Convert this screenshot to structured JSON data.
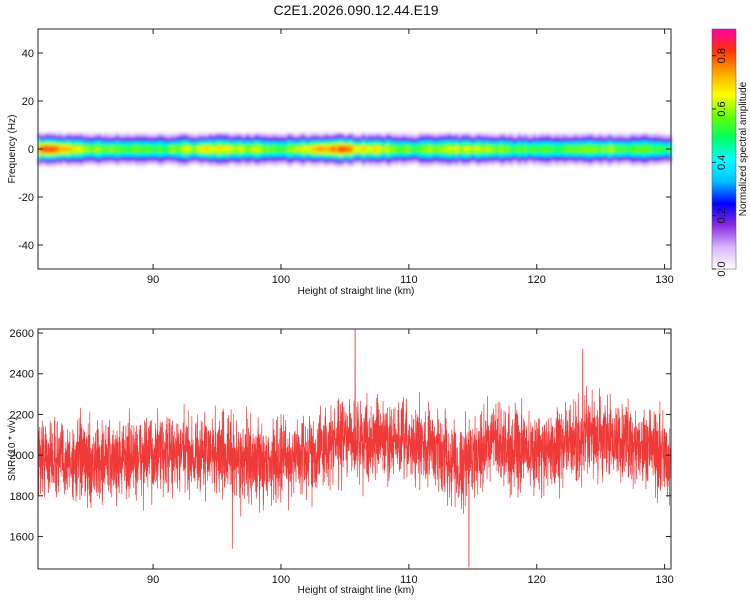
{
  "title": "C2E1.2026.090.12.44.E19",
  "chart_data": [
    {
      "type": "heatmap",
      "xlabel": "Height of straight line (km)",
      "ylabel": "Frequency (Hz)",
      "xlim": [
        81.0,
        130.5
      ],
      "ylim": [
        -50,
        50
      ],
      "x_ticks": [
        90,
        100,
        110,
        120,
        130
      ],
      "y_ticks": [
        40,
        20,
        0,
        -20,
        -40
      ],
      "colorbar": {
        "label": "Normalized spectral amplitude",
        "range": [
          0.0,
          0.9
        ],
        "ticks": [
          "0.0",
          "0.2",
          "0.4",
          "0.6",
          "0.8"
        ],
        "palette": [
          "#ffffff",
          "#d8b6ff",
          "#8a2be2",
          "#0000ff",
          "#00bfff",
          "#00ffff",
          "#00ff66",
          "#66ff00",
          "#ffff00",
          "#ffa500",
          "#ff3300",
          "#ff00aa"
        ]
      },
      "ridge_center_hz": 0,
      "ridge_peak_amplitude_by_height": [
        {
          "x": 81.5,
          "amp": 0.85
        },
        {
          "x": 84.5,
          "amp": 0.62
        },
        {
          "x": 90.0,
          "amp": 0.55
        },
        {
          "x": 95.0,
          "amp": 0.72
        },
        {
          "x": 100.0,
          "amp": 0.55
        },
        {
          "x": 104.0,
          "amp": 0.82
        },
        {
          "x": 110.0,
          "amp": 0.58
        },
        {
          "x": 114.0,
          "amp": 0.65
        },
        {
          "x": 120.0,
          "amp": 0.55
        },
        {
          "x": 126.0,
          "amp": 0.6
        },
        {
          "x": 130.0,
          "amp": 0.55
        }
      ]
    },
    {
      "type": "line",
      "xlabel": "Height of straight line (km)",
      "ylabel": "SNR (10 * v/v)",
      "xlim": [
        81.0,
        130.5
      ],
      "ylim": [
        1440,
        2620
      ],
      "x_ticks": [
        90,
        100,
        110,
        120,
        130
      ],
      "y_ticks": [
        2600,
        2400,
        2200,
        2000,
        1800,
        1600
      ],
      "series_color": "#f03a3a",
      "baseline_trend": [
        {
          "x": 81,
          "y": 1990
        },
        {
          "x": 85,
          "y": 1960
        },
        {
          "x": 90,
          "y": 2000
        },
        {
          "x": 95,
          "y": 2010
        },
        {
          "x": 98,
          "y": 1960
        },
        {
          "x": 102,
          "y": 2000
        },
        {
          "x": 105,
          "y": 2080
        },
        {
          "x": 108,
          "y": 2070
        },
        {
          "x": 112,
          "y": 2040
        },
        {
          "x": 114,
          "y": 1940
        },
        {
          "x": 116,
          "y": 2060
        },
        {
          "x": 120,
          "y": 2010
        },
        {
          "x": 124,
          "y": 2080
        },
        {
          "x": 127,
          "y": 2070
        },
        {
          "x": 130.5,
          "y": 1990
        }
      ],
      "noise_amplitude": 170,
      "sample_count": 4000,
      "notable_points": [
        {
          "x": 105.8,
          "y": 2620
        },
        {
          "x": 114.7,
          "y": 1450
        },
        {
          "x": 123.6,
          "y": 2520
        },
        {
          "x": 96.2,
          "y": 1540
        }
      ]
    }
  ]
}
